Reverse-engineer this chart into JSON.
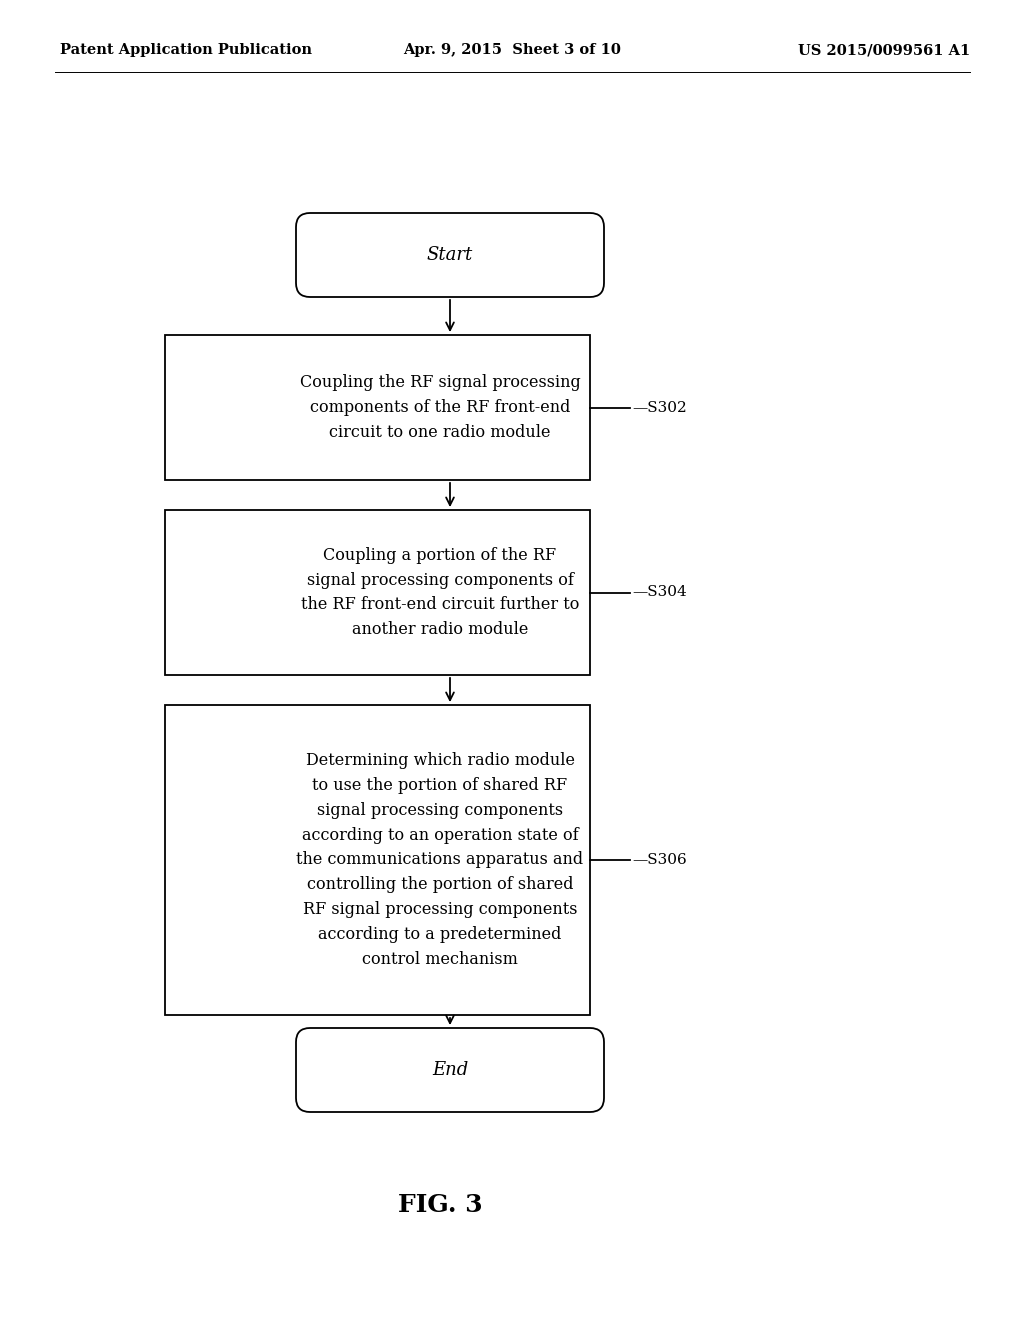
{
  "bg_color": "#ffffff",
  "header_left": "Patent Application Publication",
  "header_mid": "Apr. 9, 2015  Sheet 3 of 10",
  "header_right": "US 2015/0099561 A1",
  "header_fontsize": 10.5,
  "start_label": "Start",
  "end_label": "End",
  "box1_text": "Coupling the RF signal processing\ncomponents of the RF front-end\ncircuit to one radio module",
  "box1_label": "—S302",
  "box2_text": "Coupling a portion of the RF\nsignal processing components of\nthe RF front-end circuit further to\nanother radio module",
  "box2_label": "—S304",
  "box3_text": "Determining which radio module\nto use the portion of shared RF\nsignal processing components\naccording to an operation state of\nthe communications apparatus and\ncontrolling the portion of shared\nRF signal processing components\naccording to a predetermined\ncontrol mechanism",
  "box3_label": "—S306",
  "fig_label": "FIG. 3",
  "text_color": "#000000",
  "box_edge_color": "#000000",
  "arrow_color": "#000000",
  "line_width": 1.3,
  "font_family": "DejaVu Serif"
}
